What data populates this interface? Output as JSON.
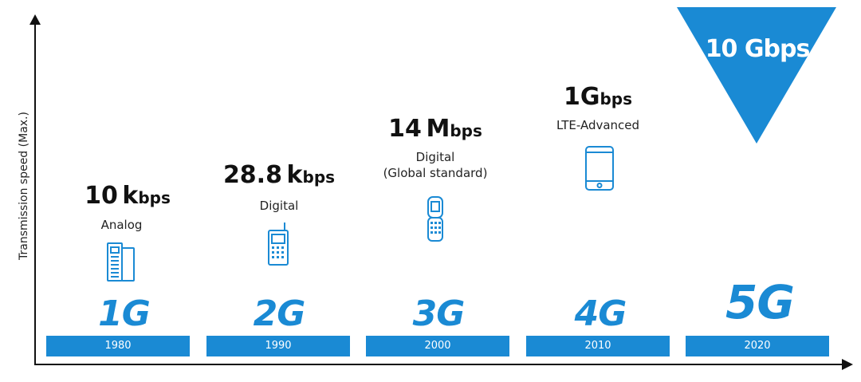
{
  "y_axis_label": "Transmission speed (Max.)",
  "colors": {
    "accent": "#1a8ad4",
    "text": "#111111",
    "bar_text": "#ffffff"
  },
  "generations": [
    {
      "gen": "1G",
      "year": "1980",
      "speed_value": "10",
      "speed_prefix": "k",
      "speed_unit": "bps",
      "tech": "Analog",
      "icon": "brick-phone-icon"
    },
    {
      "gen": "2G",
      "year": "1990",
      "speed_value": "28.8",
      "speed_prefix": "k",
      "speed_unit": "bps",
      "tech": "Digital",
      "icon": "feature-phone-icon"
    },
    {
      "gen": "3G",
      "year": "2000",
      "speed_value": "14",
      "speed_prefix": "M",
      "speed_unit": "bps",
      "tech_line1": "Digital",
      "tech_line2": "(Global standard)",
      "icon": "flip-phone-icon"
    },
    {
      "gen": "4G",
      "year": "2010",
      "speed_value": "1",
      "speed_prefix": "G",
      "speed_unit": "bps",
      "tech": "LTE-Advanced",
      "icon": "smartphone-icon"
    },
    {
      "gen": "5G",
      "year": "2020",
      "speed_label": "10 Gbps"
    }
  ]
}
